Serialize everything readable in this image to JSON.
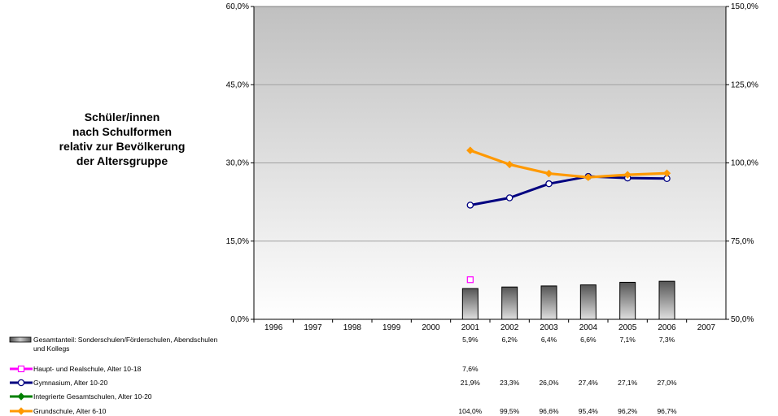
{
  "chart_data": {
    "type": "bar",
    "title_lines": [
      "Schüler/innen",
      "nach Schulformen",
      "relativ zur Bevölkerung",
      "der Altersgruppe"
    ],
    "categories": [
      "1996",
      "1997",
      "1998",
      "1999",
      "2000",
      "2001",
      "2002",
      "2003",
      "2004",
      "2005",
      "2006",
      "2007"
    ],
    "y_left": {
      "ticks": [
        "0,0%",
        "15,0%",
        "30,0%",
        "45,0%",
        "60,0%"
      ],
      "min": 0,
      "max": 60
    },
    "y_right": {
      "ticks": [
        "50,0%",
        "75,0%",
        "100,0%",
        "125,0%",
        "150,0%"
      ],
      "min": 50,
      "max": 150
    },
    "grid": true,
    "series": [
      {
        "name_lines": [
          "Gesamtanteil: Sonderschulen/Förderschulen, Abendschulen",
          "und Kollegs"
        ],
        "type": "bar",
        "axis": "left",
        "color": "#808080",
        "values": [
          null,
          null,
          null,
          null,
          null,
          5.9,
          6.2,
          6.4,
          6.6,
          7.1,
          7.3,
          null
        ],
        "labels": [
          "",
          "",
          "",
          "",
          "",
          "5,9%",
          "6,2%",
          "6,4%",
          "6,6%",
          "7,1%",
          "7,3%",
          ""
        ]
      },
      {
        "name_lines": [
          "Haupt- und Realschule, Alter 10-18"
        ],
        "type": "line",
        "axis": "left",
        "color": "#ff00ff",
        "marker": "square",
        "values": [
          null,
          null,
          null,
          null,
          null,
          7.6,
          null,
          null,
          null,
          null,
          null,
          null
        ],
        "labels": [
          "",
          "",
          "",
          "",
          "",
          "7,6%",
          "",
          "",
          "",
          "",
          "",
          ""
        ]
      },
      {
        "name_lines": [
          "Gymnasium, Alter 10-20"
        ],
        "type": "line",
        "axis": "left",
        "color": "#000080",
        "marker": "circle",
        "values": [
          null,
          null,
          null,
          null,
          null,
          21.9,
          23.3,
          26.0,
          27.4,
          27.1,
          27.0,
          null
        ],
        "labels": [
          "",
          "",
          "",
          "",
          "",
          "21,9%",
          "23,3%",
          "26,0%",
          "27,4%",
          "27,1%",
          "27,0%",
          ""
        ]
      },
      {
        "name_lines": [
          "Integrierte Gesamtschulen, Alter 10-20"
        ],
        "type": "line",
        "axis": "left",
        "color": "#008000",
        "marker": "diamond",
        "values": [
          null,
          null,
          null,
          null,
          null,
          null,
          null,
          null,
          null,
          null,
          null,
          null
        ],
        "labels": [
          "",
          "",
          "",
          "",
          "",
          "",
          "",
          "",
          "",
          "",
          "",
          ""
        ]
      },
      {
        "name_lines": [
          "Grundschule, Alter 6-10"
        ],
        "type": "line",
        "axis": "right",
        "color": "#ff9900",
        "marker": "diamond",
        "values": [
          null,
          null,
          null,
          null,
          null,
          104.0,
          99.5,
          96.6,
          95.4,
          96.2,
          96.7,
          null
        ],
        "labels": [
          "",
          "",
          "",
          "",
          "",
          "104,0%",
          "99,5%",
          "96,6%",
          "95,4%",
          "96,2%",
          "96,7%",
          ""
        ]
      }
    ]
  }
}
